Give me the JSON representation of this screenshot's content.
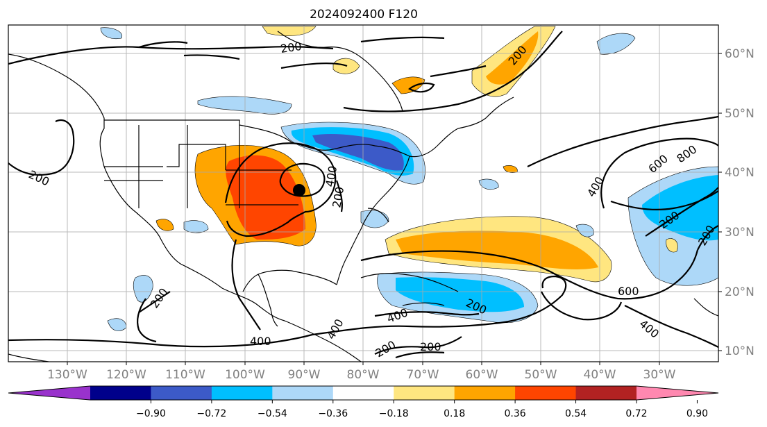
{
  "title": "2024092400 F120",
  "map": {
    "lon_labels": [
      "130°W",
      "120°W",
      "110°W",
      "100°W",
      "90°W",
      "80°W",
      "70°W",
      "60°W",
      "50°W",
      "40°W",
      "30°W"
    ],
    "lat_labels": [
      "60°N",
      "50°N",
      "40°N",
      "30°N",
      "20°N",
      "10°N"
    ],
    "contour_labels": [
      "200",
      "200",
      "200",
      "200",
      "200",
      "200",
      "200",
      "200",
      "200",
      "200",
      "400",
      "400",
      "400",
      "400",
      "400",
      "400",
      "600",
      "600",
      "800"
    ],
    "colors": {
      "orange": "#ffa500",
      "red_orange": "#ff4500",
      "yellow": "#ffe680",
      "light_blue": "#add8ff",
      "sky_blue": "#00bfff",
      "royal_blue": "#4159d0"
    }
  },
  "colorbar": {
    "colors": [
      "#9932cc",
      "#00008b",
      "#3c5ac8",
      "#00bfff",
      "#add8f8",
      "#ffffff",
      "#ffe680",
      "#ffa500",
      "#ff4500",
      "#b22222",
      "#ff88b0"
    ],
    "tick_labels": [
      "−0.90",
      "−0.72",
      "−0.54",
      "−0.36",
      "−0.18",
      "0.18",
      "0.36",
      "0.54",
      "0.72",
      "0.90"
    ]
  }
}
